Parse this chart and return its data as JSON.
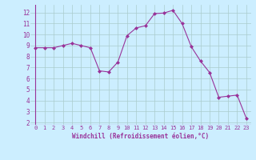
{
  "x": [
    0,
    1,
    2,
    3,
    4,
    5,
    6,
    7,
    8,
    9,
    10,
    11,
    12,
    13,
    14,
    15,
    16,
    17,
    18,
    19,
    20,
    21,
    22,
    23
  ],
  "y": [
    8.8,
    8.8,
    8.8,
    9.0,
    9.2,
    9.0,
    8.8,
    6.7,
    6.6,
    7.5,
    9.9,
    10.6,
    10.8,
    11.9,
    11.95,
    12.2,
    11.0,
    8.9,
    7.6,
    6.55,
    4.3,
    4.4,
    4.5,
    2.4
  ],
  "line_color": "#993399",
  "marker": "D",
  "marker_size": 2,
  "bg_color": "#cceeff",
  "grid_color": "#aacccc",
  "xlabel": "Windchill (Refroidissement éolien,°C)",
  "xlabel_color": "#993399",
  "tick_color": "#993399",
  "ylim": [
    1.8,
    12.7
  ],
  "xlim": [
    -0.5,
    23.5
  ],
  "yticks": [
    2,
    3,
    4,
    5,
    6,
    7,
    8,
    9,
    10,
    11,
    12
  ],
  "xticks": [
    0,
    1,
    2,
    3,
    4,
    5,
    6,
    7,
    8,
    9,
    10,
    11,
    12,
    13,
    14,
    15,
    16,
    17,
    18,
    19,
    20,
    21,
    22,
    23
  ],
  "figsize": [
    3.2,
    2.0
  ],
  "dpi": 100
}
